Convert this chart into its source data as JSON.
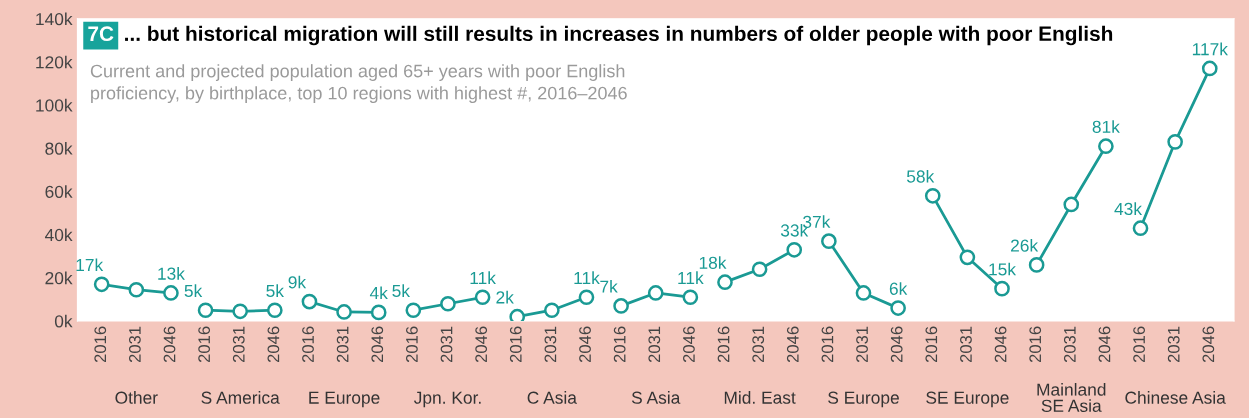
{
  "chart_data": {
    "type": "line",
    "title": "... but historical migration will still results in increases in numbers of older people with poor English",
    "subtitle": "Current and projected population aged 65+ years with poor English\nproficiency, by birthplace, top 10 regions with highest #, 2016–2046",
    "annotations": [
      "7C",
      "Other",
      "S America",
      "E Europe",
      "Jpn. Kor.",
      "C Asia",
      "S Asia",
      "Mid. East",
      "S Europe",
      "SE Europe",
      "Mainland SE Asia",
      "Chinese Asia"
    ],
    "categories": [
      "2016",
      "2031",
      "2046",
      "2016",
      "2031",
      "2046",
      "2016",
      "2031",
      "2046",
      "2016",
      "2031",
      "2046",
      "2016",
      "2031",
      "2046",
      "2016",
      "2031",
      "2046",
      "2016",
      "2031",
      "2046",
      "2016",
      "2031",
      "2046",
      "2016",
      "2031",
      "2046",
      "2016",
      "2031",
      "2046",
      "2016",
      "2031",
      "2046"
    ],
    "series": [
      {
        "color": "#1a9a94",
        "values": [
          17000,
          14500,
          13000,
          null,
          null,
          null,
          null,
          null,
          null,
          null,
          null,
          null,
          null,
          null,
          null,
          null,
          null,
          null,
          null,
          null,
          null,
          null,
          null,
          null,
          null,
          null,
          null,
          null,
          null,
          null,
          null,
          null,
          null
        ],
        "value_labels": [
          "17k",
          null,
          "13k",
          null,
          null,
          null,
          null,
          null,
          null,
          null,
          null,
          null,
          null,
          null,
          null,
          null,
          null,
          null,
          null,
          null,
          null,
          null,
          null,
          null,
          null,
          null,
          null,
          null,
          null,
          null,
          null,
          null,
          null
        ]
      },
      {
        "color": "#1a9a94",
        "values": [
          null,
          null,
          null,
          5000,
          4500,
          5000,
          null,
          null,
          null,
          null,
          null,
          null,
          null,
          null,
          null,
          null,
          null,
          null,
          null,
          null,
          null,
          null,
          null,
          null,
          null,
          null,
          null,
          null,
          null,
          null,
          null,
          null,
          null
        ],
        "value_labels": [
          null,
          null,
          null,
          "5k",
          null,
          "5k",
          null,
          null,
          null,
          null,
          null,
          null,
          null,
          null,
          null,
          null,
          null,
          null,
          null,
          null,
          null,
          null,
          null,
          null,
          null,
          null,
          null,
          null,
          null,
          null,
          null,
          null,
          null
        ]
      },
      {
        "color": "#1a9a94",
        "values": [
          null,
          null,
          null,
          null,
          null,
          null,
          9000,
          4200,
          4000,
          null,
          null,
          null,
          null,
          null,
          null,
          null,
          null,
          null,
          null,
          null,
          null,
          null,
          null,
          null,
          null,
          null,
          null,
          null,
          null,
          null,
          null,
          null,
          null
        ],
        "value_labels": [
          null,
          null,
          null,
          null,
          null,
          null,
          "9k",
          null,
          "4k",
          null,
          null,
          null,
          null,
          null,
          null,
          null,
          null,
          null,
          null,
          null,
          null,
          null,
          null,
          null,
          null,
          null,
          null,
          null,
          null,
          null,
          null,
          null,
          null
        ]
      },
      {
        "color": "#1a9a94",
        "values": [
          null,
          null,
          null,
          null,
          null,
          null,
          null,
          null,
          null,
          5000,
          8000,
          11000,
          null,
          null,
          null,
          null,
          null,
          null,
          null,
          null,
          null,
          null,
          null,
          null,
          null,
          null,
          null,
          null,
          null,
          null,
          null,
          null,
          null
        ],
        "value_labels": [
          null,
          null,
          null,
          null,
          null,
          null,
          null,
          null,
          null,
          "5k",
          null,
          "11k",
          null,
          null,
          null,
          null,
          null,
          null,
          null,
          null,
          null,
          null,
          null,
          null,
          null,
          null,
          null,
          null,
          null,
          null,
          null,
          null,
          null
        ]
      },
      {
        "color": "#1a9a94",
        "values": [
          null,
          null,
          null,
          null,
          null,
          null,
          null,
          null,
          null,
          null,
          null,
          null,
          2000,
          5000,
          11000,
          null,
          null,
          null,
          null,
          null,
          null,
          null,
          null,
          null,
          null,
          null,
          null,
          null,
          null,
          null,
          null,
          null,
          null
        ],
        "value_labels": [
          null,
          null,
          null,
          null,
          null,
          null,
          null,
          null,
          null,
          null,
          null,
          null,
          "2k",
          null,
          "11k",
          null,
          null,
          null,
          null,
          null,
          null,
          null,
          null,
          null,
          null,
          null,
          null,
          null,
          null,
          null,
          null,
          null,
          null
        ]
      },
      {
        "color": "#1a9a94",
        "values": [
          null,
          null,
          null,
          null,
          null,
          null,
          null,
          null,
          null,
          null,
          null,
          null,
          null,
          null,
          null,
          7000,
          13000,
          11000,
          null,
          null,
          null,
          null,
          null,
          null,
          null,
          null,
          null,
          null,
          null,
          null,
          null,
          null,
          null
        ],
        "value_labels": [
          null,
          null,
          null,
          null,
          null,
          null,
          null,
          null,
          null,
          null,
          null,
          null,
          null,
          null,
          null,
          "7k",
          null,
          "11k",
          null,
          null,
          null,
          null,
          null,
          null,
          null,
          null,
          null,
          null,
          null,
          null,
          null,
          null,
          null
        ]
      },
      {
        "color": "#1a9a94",
        "values": [
          null,
          null,
          null,
          null,
          null,
          null,
          null,
          null,
          null,
          null,
          null,
          null,
          null,
          null,
          null,
          null,
          null,
          null,
          18000,
          24000,
          33000,
          null,
          null,
          null,
          null,
          null,
          null,
          null,
          null,
          null,
          null,
          null,
          null
        ],
        "value_labels": [
          null,
          null,
          null,
          null,
          null,
          null,
          null,
          null,
          null,
          null,
          null,
          null,
          null,
          null,
          null,
          null,
          null,
          null,
          "18k",
          null,
          "33k",
          null,
          null,
          null,
          null,
          null,
          null,
          null,
          null,
          null,
          null,
          null,
          null
        ]
      },
      {
        "color": "#1a9a94",
        "values": [
          null,
          null,
          null,
          null,
          null,
          null,
          null,
          null,
          null,
          null,
          null,
          null,
          null,
          null,
          null,
          null,
          null,
          null,
          null,
          null,
          null,
          37000,
          13000,
          6000,
          null,
          null,
          null,
          null,
          null,
          null,
          null,
          null,
          null
        ],
        "value_labels": [
          null,
          null,
          null,
          null,
          null,
          null,
          null,
          null,
          null,
          null,
          null,
          null,
          null,
          null,
          null,
          null,
          null,
          null,
          null,
          null,
          null,
          "37k",
          null,
          "6k",
          null,
          null,
          null,
          null,
          null,
          null,
          null,
          null,
          null
        ]
      },
      {
        "color": "#1a9a94",
        "values": [
          null,
          null,
          null,
          null,
          null,
          null,
          null,
          null,
          null,
          null,
          null,
          null,
          null,
          null,
          null,
          null,
          null,
          null,
          null,
          null,
          null,
          null,
          null,
          null,
          58000,
          29500,
          15000,
          null,
          null,
          null,
          null,
          null,
          null
        ],
        "value_labels": [
          null,
          null,
          null,
          null,
          null,
          null,
          null,
          null,
          null,
          null,
          null,
          null,
          null,
          null,
          null,
          null,
          null,
          null,
          null,
          null,
          null,
          null,
          null,
          null,
          "58k",
          null,
          "15k",
          null,
          null,
          null,
          null,
          null,
          null
        ]
      },
      {
        "color": "#1a9a94",
        "values": [
          null,
          null,
          null,
          null,
          null,
          null,
          null,
          null,
          null,
          null,
          null,
          null,
          null,
          null,
          null,
          null,
          null,
          null,
          null,
          null,
          null,
          null,
          null,
          null,
          null,
          null,
          null,
          26000,
          54000,
          81000,
          null,
          null,
          null
        ],
        "value_labels": [
          null,
          null,
          null,
          null,
          null,
          null,
          null,
          null,
          null,
          null,
          null,
          null,
          null,
          null,
          null,
          null,
          null,
          null,
          null,
          null,
          null,
          null,
          null,
          null,
          null,
          null,
          null,
          "26k",
          null,
          "81k",
          null,
          null,
          null
        ]
      },
      {
        "color": "#1a9a94",
        "values": [
          null,
          null,
          null,
          null,
          null,
          null,
          null,
          null,
          null,
          null,
          null,
          null,
          null,
          null,
          null,
          null,
          null,
          null,
          null,
          null,
          null,
          null,
          null,
          null,
          null,
          null,
          null,
          null,
          null,
          null,
          43000,
          83000,
          117000
        ],
        "value_labels": [
          null,
          null,
          null,
          null,
          null,
          null,
          null,
          null,
          null,
          null,
          null,
          null,
          null,
          null,
          null,
          null,
          null,
          null,
          null,
          null,
          null,
          null,
          null,
          null,
          null,
          null,
          null,
          null,
          null,
          null,
          "43k",
          null,
          "117k"
        ]
      }
    ],
    "ylim": [
      0,
      140000
    ],
    "yticks": [
      {
        "value": 0,
        "label": "0k"
      },
      {
        "value": 20000,
        "label": "20k"
      },
      {
        "value": 40000,
        "label": "40k"
      },
      {
        "value": 60000,
        "label": "60k"
      },
      {
        "value": 80000,
        "label": "80k"
      },
      {
        "value": 100000,
        "label": "100k"
      },
      {
        "value": 120000,
        "label": "120k"
      },
      {
        "value": 140000,
        "label": "140k"
      }
    ],
    "marker": "circle"
  }
}
